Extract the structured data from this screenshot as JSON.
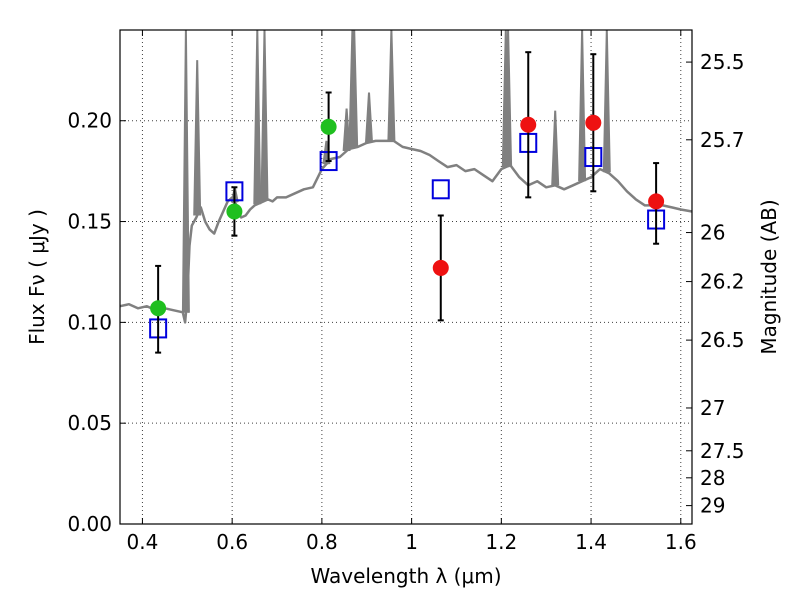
{
  "chart_data": {
    "type": "scatter",
    "title": "",
    "xlabel": "Wavelength  λ (μm)",
    "ylabel": "Flux  Fν  ( μJy )",
    "ylabel_right": "Magnitude (AB)",
    "xlim": [
      0.35,
      1.625
    ],
    "ylim": [
      0.0,
      0.245
    ],
    "grid": true,
    "x_ticks": [
      0.4,
      0.6,
      0.8,
      1.0,
      1.2,
      1.4,
      1.6
    ],
    "x_tick_labels": [
      "0.4",
      "0.6",
      "0.8",
      "1",
      "1.2",
      "1.4",
      "1.6"
    ],
    "y_ticks": [
      0.0,
      0.05,
      0.1,
      0.15,
      0.2
    ],
    "y_tick_labels": [
      "0.00",
      "0.05",
      "0.10",
      "0.15",
      "0.20"
    ],
    "mag_ticks": [
      "25.5",
      "25.7",
      "26",
      "26.2",
      "26.5",
      "27",
      "27.5",
      "28",
      "29"
    ],
    "colors": {
      "model": "#808080",
      "green": "#1fbf1f",
      "red": "#ee1111",
      "box": "#0000dd",
      "errorbar": "#000000"
    },
    "series": [
      {
        "name": "model spectrum",
        "style": "line",
        "x": [
          0.35,
          0.37,
          0.39,
          0.41,
          0.43,
          0.45,
          0.47,
          0.49,
          0.495,
          0.5,
          0.505,
          0.51,
          0.52,
          0.53,
          0.54,
          0.55,
          0.56,
          0.57,
          0.58,
          0.59,
          0.6,
          0.61,
          0.62,
          0.63,
          0.64,
          0.65,
          0.66,
          0.67,
          0.68,
          0.69,
          0.7,
          0.72,
          0.74,
          0.76,
          0.78,
          0.8,
          0.82,
          0.84,
          0.86,
          0.88,
          0.9,
          0.92,
          0.94,
          0.96,
          0.98,
          1.0,
          1.02,
          1.04,
          1.06,
          1.08,
          1.1,
          1.12,
          1.14,
          1.16,
          1.18,
          1.2,
          1.22,
          1.24,
          1.26,
          1.28,
          1.3,
          1.32,
          1.34,
          1.36,
          1.38,
          1.4,
          1.42,
          1.44,
          1.46,
          1.48,
          1.5,
          1.52,
          1.54,
          1.56,
          1.58,
          1.6,
          1.625
        ],
        "y": [
          0.108,
          0.109,
          0.107,
          0.108,
          0.106,
          0.107,
          0.106,
          0.105,
          0.1,
          0.112,
          0.138,
          0.148,
          0.152,
          0.157,
          0.15,
          0.146,
          0.144,
          0.15,
          0.155,
          0.16,
          0.162,
          0.158,
          0.152,
          0.153,
          0.156,
          0.158,
          0.159,
          0.16,
          0.161,
          0.16,
          0.162,
          0.162,
          0.164,
          0.166,
          0.167,
          0.176,
          0.181,
          0.182,
          0.186,
          0.187,
          0.189,
          0.19,
          0.19,
          0.19,
          0.187,
          0.186,
          0.185,
          0.183,
          0.18,
          0.177,
          0.178,
          0.175,
          0.176,
          0.173,
          0.17,
          0.176,
          0.178,
          0.172,
          0.168,
          0.17,
          0.167,
          0.168,
          0.166,
          0.168,
          0.17,
          0.172,
          0.176,
          0.174,
          0.17,
          0.165,
          0.161,
          0.158,
          0.158,
          0.158,
          0.157,
          0.156,
          0.155
        ]
      },
      {
        "name": "emission lines",
        "style": "spikes",
        "x": [
          0.497,
          0.522,
          0.606,
          0.656,
          0.672,
          0.81,
          0.855,
          0.868,
          0.872,
          0.905,
          0.955,
          1.21,
          1.215,
          1.32,
          1.38,
          1.435
        ],
        "y": [
          0.245,
          0.23,
          0.167,
          0.245,
          0.245,
          0.19,
          0.206,
          0.245,
          0.245,
          0.214,
          0.245,
          0.245,
          0.245,
          0.205,
          0.245,
          0.245
        ]
      },
      {
        "name": "observed (optical)",
        "style": "circle",
        "color": "green",
        "x": [
          0.435,
          0.605,
          0.815
        ],
        "y": [
          0.107,
          0.155,
          0.197
        ],
        "err_low": [
          0.085,
          0.143,
          0.18
        ],
        "err_high": [
          0.128,
          0.167,
          0.214
        ]
      },
      {
        "name": "observed (near-IR)",
        "style": "circle",
        "color": "red",
        "x": [
          1.065,
          1.26,
          1.405,
          1.545
        ],
        "y": [
          0.127,
          0.198,
          0.199,
          0.16
        ],
        "err_low": [
          0.101,
          0.162,
          0.165,
          0.139
        ],
        "err_high": [
          0.153,
          0.234,
          0.233,
          0.179
        ]
      },
      {
        "name": "model synthetic photometry",
        "style": "open-square",
        "color": "box",
        "x": [
          0.435,
          0.605,
          0.815,
          1.065,
          1.26,
          1.405,
          1.545
        ],
        "y": [
          0.097,
          0.165,
          0.18,
          0.166,
          0.189,
          0.182,
          0.151
        ]
      }
    ]
  }
}
